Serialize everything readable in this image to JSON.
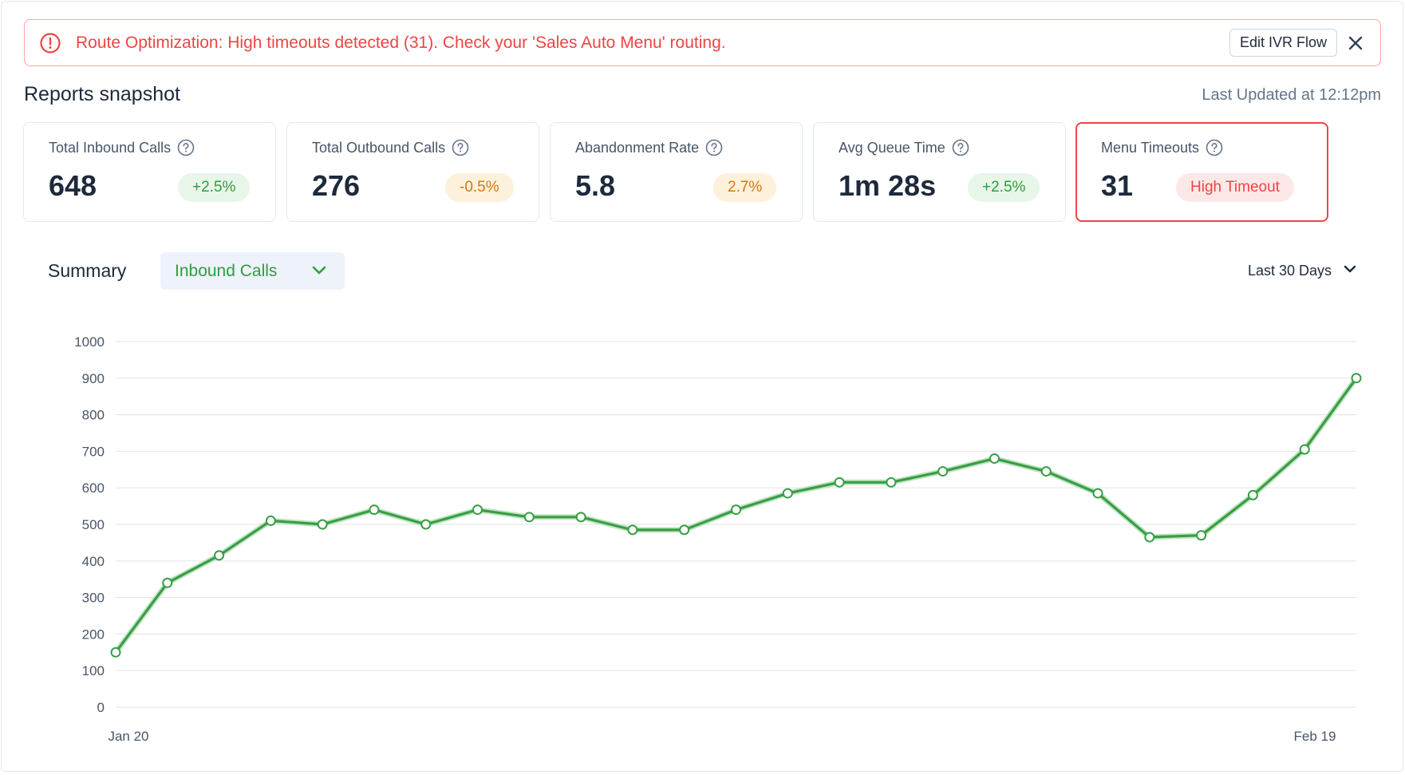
{
  "alert": {
    "prefix": "Route Optimization:",
    "message": " High timeouts detected (31). Check your 'Sales Auto Menu' routing.",
    "button_label": "Edit IVR Flow",
    "icon": "alert-circle-icon",
    "close_icon": "close-icon",
    "color": "#ef4444"
  },
  "header": {
    "title": "Reports snapshot",
    "last_updated": "Last Updated at 12:12pm"
  },
  "cards": [
    {
      "label": "Total Inbound Calls",
      "value": "648",
      "badge": "+2.5%",
      "badge_tone": "green"
    },
    {
      "label": "Total Outbound Calls",
      "value": "276",
      "badge": "-0.5%",
      "badge_tone": "orange"
    },
    {
      "label": "Abandonment Rate",
      "value": "5.8",
      "badge": "2.7%",
      "badge_tone": "orange"
    },
    {
      "label": "Avg Queue Time",
      "value": "1m 28s",
      "badge": "+2.5%",
      "badge_tone": "green"
    },
    {
      "label": "Menu Timeouts",
      "value": "31",
      "badge": "High Timeout",
      "badge_tone": "red"
    }
  ],
  "summary": {
    "label": "Summary",
    "metric_selected": "Inbound Calls",
    "range_selected": "Last 30 Days"
  },
  "chart_data": {
    "type": "line",
    "title": "",
    "xlabel": "",
    "ylabel": "",
    "ylim": [
      0,
      1000
    ],
    "yticks": [
      0,
      100,
      200,
      300,
      400,
      500,
      600,
      700,
      800,
      900,
      1000
    ],
    "x_tick_labels": [
      "Jan 20",
      "Feb 19"
    ],
    "grid": true,
    "line_color": "#3a9d45",
    "series": [
      {
        "values": [
          150,
          340,
          415,
          510,
          500,
          540,
          500,
          540,
          520,
          520,
          485,
          485,
          540,
          585,
          615,
          615,
          645,
          680,
          645,
          585,
          465,
          470,
          580,
          705,
          900
        ]
      }
    ]
  }
}
